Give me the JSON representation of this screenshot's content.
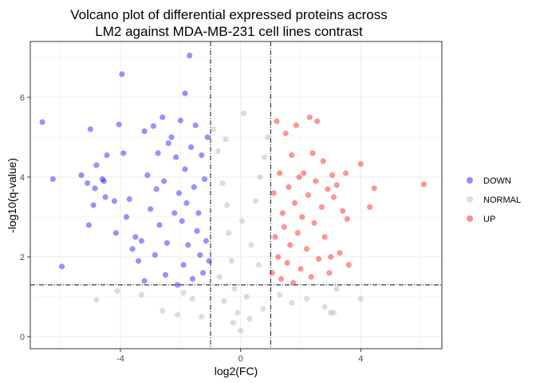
{
  "chart_data": {
    "type": "scatter",
    "title": "Volcano plot of differential expressed proteins across LM2 against MDA-MB-231 cell lines contrast",
    "title_lines": [
      "Volcano plot of differential expressed proteins across",
      "LM2 against MDA-MB-231 cell lines contrast"
    ],
    "xlabel": "log2(FC)",
    "ylabel": "-log10(q-value)",
    "xlim": [
      -7,
      6.7
    ],
    "ylim": [
      -0.3,
      7.4
    ],
    "x_ticks": [
      -4,
      0,
      4
    ],
    "y_ticks": [
      0,
      2,
      4,
      6
    ],
    "grid": true,
    "legend_position": "right",
    "thresholds": {
      "log2fc": [
        -1,
        1
      ],
      "neg_log10_q": 1.3
    },
    "colors": {
      "DOWN": "#0000ff",
      "NORMAL": "#b3b3b3",
      "UP": "#ff0000"
    },
    "series": [
      {
        "name": "DOWN",
        "color": "#0000ff",
        "points": [
          [
            -6.6,
            5.38
          ],
          [
            -6.25,
            3.95
          ],
          [
            -5.95,
            1.76
          ],
          [
            -5.3,
            4.05
          ],
          [
            -5.1,
            3.85
          ],
          [
            -5.05,
            2.8
          ],
          [
            -5.0,
            5.2
          ],
          [
            -4.9,
            3.3
          ],
          [
            -4.85,
            3.72
          ],
          [
            -4.8,
            4.3
          ],
          [
            -4.6,
            3.95
          ],
          [
            -4.55,
            3.9
          ],
          [
            -4.5,
            3.5
          ],
          [
            -4.45,
            4.55
          ],
          [
            -4.2,
            3.4
          ],
          [
            -4.15,
            2.6
          ],
          [
            -4.05,
            5.32
          ],
          [
            -3.95,
            6.58
          ],
          [
            -3.9,
            4.6
          ],
          [
            -3.8,
            3.0
          ],
          [
            -3.7,
            3.45
          ],
          [
            -3.6,
            2.2
          ],
          [
            -3.5,
            2.5
          ],
          [
            -3.4,
            1.9
          ],
          [
            -3.3,
            2.4
          ],
          [
            -3.2,
            5.15
          ],
          [
            -3.2,
            1.4
          ],
          [
            -3.1,
            4.05
          ],
          [
            -3.0,
            3.2
          ],
          [
            -2.9,
            5.28
          ],
          [
            -2.85,
            2.05
          ],
          [
            -2.8,
            3.7
          ],
          [
            -2.75,
            4.6
          ],
          [
            -2.7,
            2.8
          ],
          [
            -2.6,
            5.5
          ],
          [
            -2.55,
            3.9
          ],
          [
            -2.5,
            1.55
          ],
          [
            -2.45,
            2.35
          ],
          [
            -2.4,
            4.85
          ],
          [
            -2.3,
            5.0
          ],
          [
            -2.2,
            3.1
          ],
          [
            -2.15,
            4.5
          ],
          [
            -2.1,
            1.3
          ],
          [
            -2.05,
            3.6
          ],
          [
            -2.0,
            5.42
          ],
          [
            -1.95,
            2.9
          ],
          [
            -1.9,
            1.8
          ],
          [
            -1.85,
            6.1
          ],
          [
            -1.85,
            4.2
          ],
          [
            -1.8,
            3.35
          ],
          [
            -1.75,
            2.3
          ],
          [
            -1.7,
            7.05
          ],
          [
            -1.65,
            4.75
          ],
          [
            -1.6,
            1.45
          ],
          [
            -1.55,
            3.75
          ],
          [
            -1.5,
            5.3
          ],
          [
            -1.45,
            2.65
          ],
          [
            -1.4,
            3.1
          ],
          [
            -1.35,
            2.05
          ],
          [
            -1.3,
            4.55
          ],
          [
            -1.25,
            1.6
          ],
          [
            -1.2,
            3.95
          ],
          [
            -1.15,
            2.4
          ],
          [
            -1.1,
            5.0
          ],
          [
            -1.05,
            1.9
          ]
        ]
      },
      {
        "name": "NORMAL",
        "color": "#b3b3b3",
        "points": [
          [
            -4.8,
            0.92
          ],
          [
            -4.1,
            1.15
          ],
          [
            -3.3,
            1.05
          ],
          [
            -2.6,
            0.65
          ],
          [
            -2.1,
            0.55
          ],
          [
            -1.9,
            1.1
          ],
          [
            -1.6,
            0.95
          ],
          [
            -1.3,
            0.5
          ],
          [
            -0.9,
            5.2
          ],
          [
            -0.75,
            4.65
          ],
          [
            -0.6,
            3.85
          ],
          [
            -0.5,
            4.95
          ],
          [
            -0.45,
            3.3
          ],
          [
            -0.4,
            2.6
          ],
          [
            -0.3,
            1.9
          ],
          [
            -0.2,
            1.2
          ],
          [
            -0.1,
            0.6
          ],
          [
            0.0,
            0.15
          ],
          [
            0.1,
            5.6
          ],
          [
            0.2,
            1.0
          ],
          [
            0.35,
            2.3
          ],
          [
            0.5,
            3.4
          ],
          [
            0.65,
            4.0
          ],
          [
            0.8,
            4.5
          ],
          [
            0.9,
            5.0
          ],
          [
            1.3,
            1.05
          ],
          [
            1.7,
            0.85
          ],
          [
            2.2,
            0.95
          ],
          [
            2.8,
            0.75
          ],
          [
            3.2,
            1.2
          ],
          [
            3.0,
            0.6
          ],
          [
            3.1,
            0.6
          ],
          [
            4.0,
            0.95
          ],
          [
            -0.7,
            1.5
          ],
          [
            0.6,
            1.8
          ],
          [
            -0.25,
            0.35
          ],
          [
            0.3,
            0.45
          ],
          [
            -0.55,
            0.9
          ],
          [
            0.75,
            0.7
          ],
          [
            0.05,
            2.9
          ]
        ]
      },
      {
        "name": "UP",
        "color": "#ff0000",
        "points": [
          [
            1.05,
            1.6
          ],
          [
            1.1,
            3.6
          ],
          [
            1.15,
            2.5
          ],
          [
            1.2,
            5.4
          ],
          [
            1.25,
            2.0
          ],
          [
            1.3,
            4.1
          ],
          [
            1.35,
            1.45
          ],
          [
            1.4,
            3.1
          ],
          [
            1.45,
            2.75
          ],
          [
            1.5,
            5.1
          ],
          [
            1.55,
            1.85
          ],
          [
            1.6,
            3.75
          ],
          [
            1.65,
            2.3
          ],
          [
            1.7,
            4.55
          ],
          [
            1.75,
            1.35
          ],
          [
            1.8,
            3.35
          ],
          [
            1.85,
            5.3
          ],
          [
            1.9,
            2.6
          ],
          [
            1.95,
            4.0
          ],
          [
            2.0,
            1.7
          ],
          [
            2.05,
            3.0
          ],
          [
            2.1,
            4.1
          ],
          [
            2.2,
            2.2
          ],
          [
            2.25,
            3.55
          ],
          [
            2.3,
            5.5
          ],
          [
            2.35,
            1.5
          ],
          [
            2.4,
            4.6
          ],
          [
            2.45,
            2.85
          ],
          [
            2.5,
            3.9
          ],
          [
            2.55,
            5.4
          ],
          [
            2.6,
            1.95
          ],
          [
            2.7,
            3.25
          ],
          [
            2.75,
            4.4
          ],
          [
            2.8,
            2.5
          ],
          [
            2.9,
            3.7
          ],
          [
            2.95,
            1.6
          ],
          [
            3.0,
            2.0
          ],
          [
            3.05,
            4.05
          ],
          [
            3.1,
            3.5
          ],
          [
            3.2,
            3.8
          ],
          [
            3.3,
            2.1
          ],
          [
            3.4,
            3.15
          ],
          [
            3.5,
            4.1
          ],
          [
            3.55,
            2.95
          ],
          [
            3.6,
            1.8
          ],
          [
            4.0,
            4.33
          ],
          [
            4.3,
            3.25
          ],
          [
            4.45,
            3.72
          ],
          [
            6.1,
            3.82
          ]
        ]
      }
    ]
  }
}
